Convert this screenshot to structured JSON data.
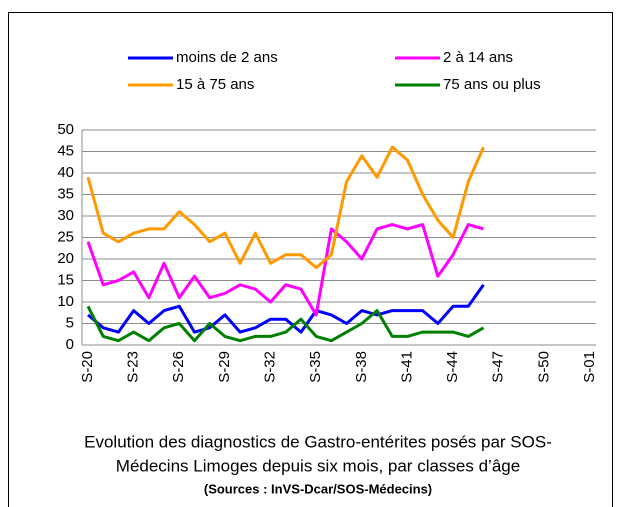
{
  "chart_data": {
    "type": "line",
    "caption": [
      "Evolution des diagnostics de Gastro-entérites posés par SOS-",
      "Médecins Limoges depuis six mois, par classes d’âge"
    ],
    "source": "(Sources : InVS-Dcar/SOS-Médecins)",
    "categories": [
      "S-20",
      null,
      null,
      "S-23",
      null,
      null,
      "S-26",
      null,
      null,
      "S-29",
      null,
      null,
      "S-32",
      null,
      null,
      "S-35",
      null,
      null,
      "S-38",
      null,
      null,
      "S-41",
      null,
      null,
      "S-44",
      null,
      null,
      "S-47",
      null,
      null,
      "S-50",
      null,
      null,
      "S-01"
    ],
    "ylim": [
      0,
      50
    ],
    "yticks": [
      0,
      5,
      10,
      15,
      20,
      25,
      30,
      35,
      40,
      45,
      50
    ],
    "grid": true,
    "series": [
      {
        "name": "moins de 2 ans",
        "color": "#0000ff",
        "values": [
          7,
          4,
          3,
          8,
          5,
          8,
          9,
          3,
          4,
          7,
          3,
          4,
          6,
          6,
          3,
          8,
          7,
          5,
          8,
          7,
          8,
          8,
          8,
          5,
          9,
          9,
          14,
          null,
          null,
          null,
          null,
          null,
          null,
          null
        ]
      },
      {
        "name": "2 à 14 ans",
        "color": "#ff00ff",
        "values": [
          24,
          14,
          15,
          17,
          11,
          19,
          11,
          16,
          11,
          12,
          14,
          13,
          10,
          14,
          13,
          7,
          27,
          24,
          20,
          27,
          28,
          27,
          28,
          16,
          21,
          28,
          27,
          null,
          null,
          null,
          null,
          null,
          null,
          null
        ]
      },
      {
        "name": "15 à 75 ans",
        "color": "#ff9900",
        "values": [
          39,
          26,
          24,
          26,
          27,
          27,
          31,
          28,
          24,
          26,
          19,
          26,
          19,
          21,
          21,
          18,
          21,
          38,
          44,
          39,
          46,
          43,
          35,
          29,
          25,
          38,
          46,
          null,
          null,
          null,
          null,
          null,
          null,
          null
        ]
      },
      {
        "name": "75 ans ou plus",
        "color": "#008000",
        "values": [
          9,
          2,
          1,
          3,
          1,
          4,
          5,
          1,
          5,
          2,
          1,
          2,
          2,
          3,
          6,
          2,
          1,
          3,
          5,
          8,
          2,
          2,
          3,
          3,
          3,
          2,
          4,
          null,
          null,
          null,
          null,
          null,
          null,
          null
        ]
      }
    ]
  }
}
